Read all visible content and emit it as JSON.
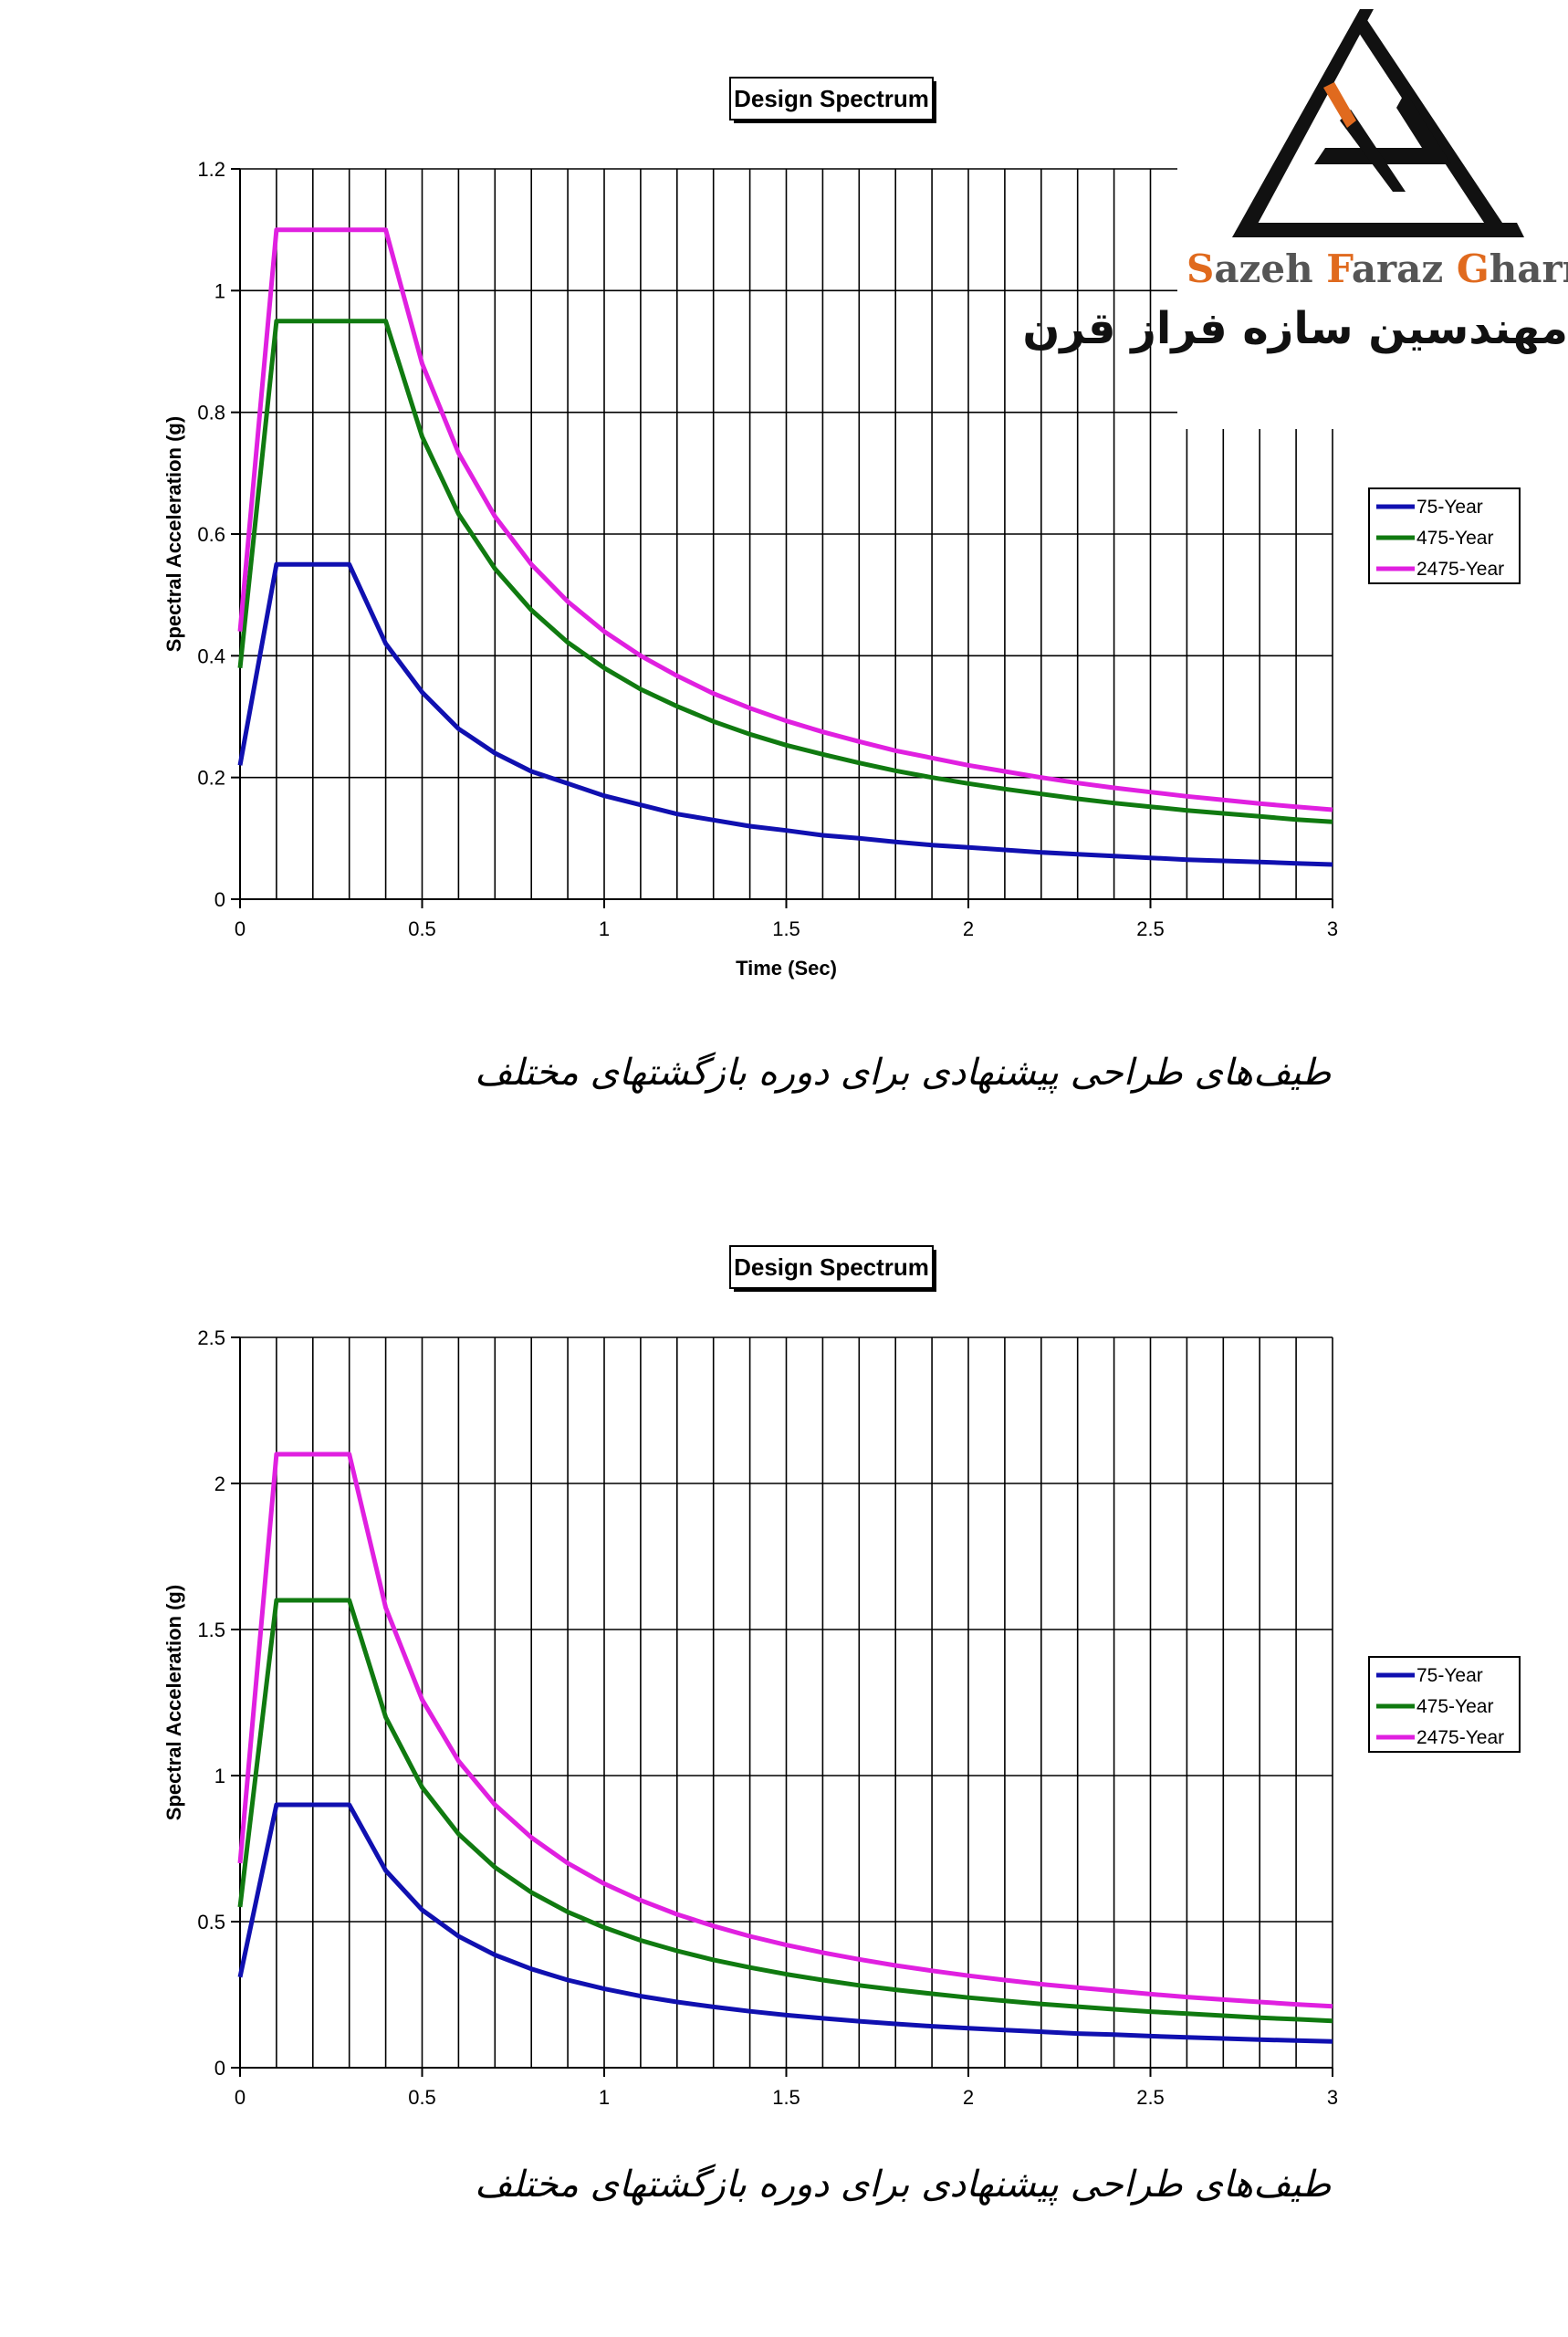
{
  "logo": {
    "name_parts": [
      {
        "text": "S",
        "accent": true
      },
      {
        "text": "azeh ",
        "accent": false
      },
      {
        "text": "F",
        "accent": true
      },
      {
        "text": "araz ",
        "accent": false
      },
      {
        "text": "G",
        "accent": true
      },
      {
        "text": "harn",
        "accent": false
      }
    ],
    "persian": "مهندسین سازه فراز قرن",
    "accent_color": "#e06a1e",
    "icon": "triangular-arrow-logo-icon"
  },
  "captions": [
    "طیف‌های طراحی پیشنهادی برای دوره بازگشتهای مختلف",
    "طیف‌های طراحی پیشنهادی برای دوره بازگشتهای مختلف"
  ],
  "colors": {
    "75-Year": "#1010b0",
    "475-Year": "#107a10",
    "2475-Year": "#e020e0"
  },
  "chart_data": [
    {
      "type": "line",
      "title": "Design Spectrum",
      "xlabel": "Time (Sec)",
      "ylabel": "Spectral Acceleration (g)",
      "xlim": [
        0,
        3
      ],
      "ylim": [
        0,
        1.2
      ],
      "xticks": [
        "0",
        "0.5",
        "1",
        "1.5",
        "2",
        "2.5",
        "3"
      ],
      "yticks": [
        "0",
        "0.2",
        "0.4",
        "0.6",
        "0.8",
        "1",
        "1.2"
      ],
      "grid": true,
      "legend": "right",
      "x": [
        0,
        0.1,
        0.2,
        0.3,
        0.4,
        0.5,
        0.6,
        0.7,
        0.8,
        0.9,
        1.0,
        1.1,
        1.2,
        1.3,
        1.4,
        1.5,
        1.6,
        1.7,
        1.8,
        1.9,
        2.0,
        2.1,
        2.2,
        2.3,
        2.4,
        2.5,
        2.6,
        2.7,
        2.8,
        2.9,
        3.0
      ],
      "series": [
        {
          "name": "75-Year",
          "values": [
            0.22,
            0.55,
            0.55,
            0.55,
            0.42,
            0.34,
            0.28,
            0.24,
            0.21,
            0.19,
            0.17,
            0.155,
            0.14,
            0.13,
            0.12,
            0.113,
            0.105,
            0.1,
            0.094,
            0.089,
            0.085,
            0.081,
            0.077,
            0.074,
            0.071,
            0.068,
            0.065,
            0.063,
            0.061,
            0.059,
            0.057
          ]
        },
        {
          "name": "475-Year",
          "values": [
            0.38,
            0.95,
            0.95,
            0.95,
            0.95,
            0.76,
            0.633,
            0.543,
            0.475,
            0.422,
            0.38,
            0.345,
            0.317,
            0.292,
            0.271,
            0.253,
            0.238,
            0.224,
            0.211,
            0.2,
            0.19,
            0.181,
            0.173,
            0.165,
            0.158,
            0.152,
            0.146,
            0.141,
            0.136,
            0.131,
            0.127
          ]
        },
        {
          "name": "2475-Year",
          "values": [
            0.44,
            1.1,
            1.1,
            1.1,
            1.1,
            0.88,
            0.733,
            0.629,
            0.55,
            0.489,
            0.44,
            0.4,
            0.367,
            0.338,
            0.314,
            0.293,
            0.275,
            0.259,
            0.244,
            0.232,
            0.22,
            0.21,
            0.2,
            0.191,
            0.183,
            0.176,
            0.169,
            0.163,
            0.157,
            0.152,
            0.147
          ]
        }
      ]
    },
    {
      "type": "line",
      "title": "Design Spectrum",
      "xlabel": "Time (Sec)",
      "ylabel": "Spectral Acceleration (g)",
      "xlim": [
        0,
        3
      ],
      "ylim": [
        0,
        2.5
      ],
      "xticks": [
        "0",
        "0.5",
        "1",
        "1.5",
        "2",
        "2.5",
        "3"
      ],
      "yticks": [
        "0",
        "0.5",
        "1",
        "1.5",
        "2",
        "2.5"
      ],
      "grid": true,
      "legend": "right",
      "x": [
        0,
        0.1,
        0.2,
        0.3,
        0.4,
        0.5,
        0.6,
        0.7,
        0.8,
        0.9,
        1.0,
        1.1,
        1.2,
        1.3,
        1.4,
        1.5,
        1.6,
        1.7,
        1.8,
        1.9,
        2.0,
        2.1,
        2.2,
        2.3,
        2.4,
        2.5,
        2.6,
        2.7,
        2.8,
        2.9,
        3.0
      ],
      "series": [
        {
          "name": "75-Year",
          "values": [
            0.31,
            0.9,
            0.9,
            0.9,
            0.675,
            0.54,
            0.45,
            0.386,
            0.338,
            0.3,
            0.27,
            0.245,
            0.225,
            0.208,
            0.193,
            0.18,
            0.169,
            0.159,
            0.15,
            0.142,
            0.135,
            0.129,
            0.123,
            0.117,
            0.113,
            0.108,
            0.104,
            0.1,
            0.096,
            0.093,
            0.09
          ]
        },
        {
          "name": "475-Year",
          "values": [
            0.55,
            1.6,
            1.6,
            1.6,
            1.2,
            0.96,
            0.8,
            0.686,
            0.6,
            0.533,
            0.48,
            0.436,
            0.4,
            0.369,
            0.343,
            0.32,
            0.3,
            0.282,
            0.267,
            0.253,
            0.24,
            0.229,
            0.218,
            0.209,
            0.2,
            0.192,
            0.185,
            0.178,
            0.171,
            0.166,
            0.16
          ]
        },
        {
          "name": "2475-Year",
          "values": [
            0.7,
            2.1,
            2.1,
            2.1,
            1.575,
            1.26,
            1.05,
            0.9,
            0.788,
            0.7,
            0.63,
            0.573,
            0.525,
            0.485,
            0.45,
            0.42,
            0.394,
            0.371,
            0.35,
            0.332,
            0.315,
            0.3,
            0.286,
            0.274,
            0.263,
            0.252,
            0.242,
            0.233,
            0.225,
            0.217,
            0.21
          ]
        }
      ]
    }
  ]
}
